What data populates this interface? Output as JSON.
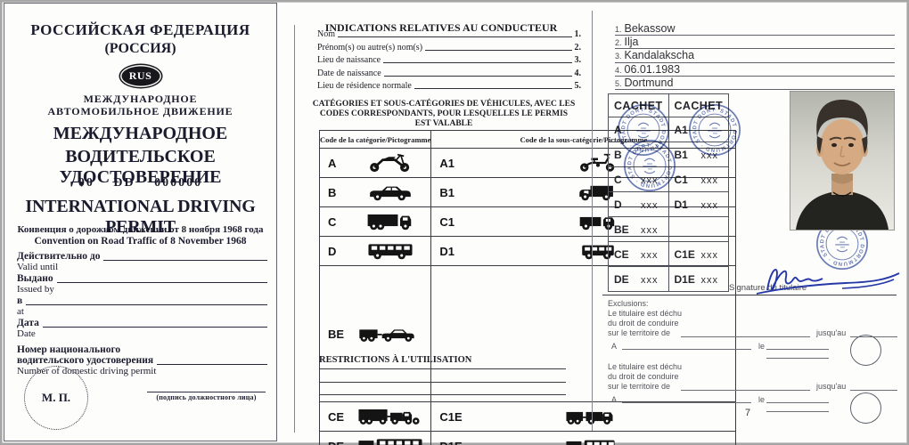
{
  "colors": {
    "stamp_blue": "#4d63a8",
    "ink_blue": "#2638a8",
    "paper": "#fdfdfc",
    "text_dark": "#1b1b2e"
  },
  "left": {
    "country_title": "РОССИЙСКАЯ ФЕДЕРАЦИЯ",
    "country_sub": "(РОССИЯ)",
    "badge": "RUS",
    "intl1": "МЕЖДУНАРОДНОЕ",
    "intl2": "АВТОМОБИЛЬНОЕ ДВИЖЕНИЕ",
    "big1": "МЕЖДУНАРОДНОЕ",
    "big2": "ВОДИТЕЛЬСКОЕ УДОСТОВЕРЕНИЕ",
    "serial": "00 DD 000000",
    "title_en": "INTERNATIONAL DRIVING PERMIT",
    "conv_ru": "Конвенция о дорожном движении от 8 ноября 1968 года",
    "conv_en": "Convention on Road Traffic of 8 November 1968",
    "fields": [
      {
        "ru": "Действительно до",
        "en": "Valid until"
      },
      {
        "ru": "Выдано",
        "en": "Issued by"
      },
      {
        "ru": "в",
        "en": "at"
      },
      {
        "ru": "Дата",
        "en": "Date"
      }
    ],
    "field5": {
      "ru1": "Номер национального",
      "ru2": "водительского удостоверения",
      "en": "Number of domestic driving permit"
    },
    "seal": "М. П.",
    "sign_caption": "(подпись должностного лица)"
  },
  "middle": {
    "heading": "INDICATIONS RELATIVES AU CONDUCTEUR",
    "fields": [
      {
        "label": "Nom",
        "num": "1."
      },
      {
        "label": "Prénom(s) ou autre(s) nom(s)",
        "num": "2."
      },
      {
        "label": "Lieu de naissance",
        "num": "3."
      },
      {
        "label": "Date de naissance",
        "num": "4."
      },
      {
        "label": "Lieu de résidence normale",
        "num": "5."
      }
    ],
    "cat_heading": "CATÉGORIES ET SOUS-CATÉGORIES DE VÉHICULES, AVEC LES CODES CORRESPONDANTS, POUR LESQUELLES LE PERMIS EST VALABLE",
    "table": {
      "h1": "Code de la catégorie/Pictogramme",
      "h2": "Code de la sous-catégorie/Pictogramme",
      "rows": [
        {
          "code1": "A",
          "icon1": "motorcycle",
          "code2": "A1",
          "icon2": "moped"
        },
        {
          "code1": "B",
          "icon1": "car",
          "code2": "B1",
          "icon2": "van"
        },
        {
          "code1": "C",
          "icon1": "truck",
          "code2": "C1",
          "icon2": "small-truck"
        },
        {
          "code1": "D",
          "icon1": "bus",
          "code2": "D1",
          "icon2": "minibus"
        },
        {
          "code1": "BE",
          "icon1": "car-trailer",
          "code2": "",
          "icon2": ""
        },
        {
          "code1": "CE",
          "icon1": "truck-trailer",
          "code2": "C1E",
          "icon2": "small-truck-trailer"
        },
        {
          "code1": "DE",
          "icon1": "bus-trailer",
          "code2": "D1E",
          "icon2": "minibus-trailer"
        }
      ]
    },
    "restrictions": "RESTRICTIONS À L'UTILISATION"
  },
  "right": {
    "fields": [
      {
        "num": "1.",
        "value": "Bekassow"
      },
      {
        "num": "2.",
        "value": "Ilja"
      },
      {
        "num": "3.",
        "value": "Kandalakscha"
      },
      {
        "num": "4.",
        "value": "06.01.1983"
      },
      {
        "num": "5.",
        "value": "Dortmund"
      }
    ],
    "cachet": {
      "h1": "CACHET",
      "h2": "CACHET",
      "rows": [
        {
          "code1": "A",
          "mark1": "",
          "code2": "A1",
          "mark2": ""
        },
        {
          "code1": "B",
          "mark1": "",
          "code2": "B1",
          "mark2": "xxx"
        },
        {
          "code1": "C",
          "mark1": "xxx",
          "code2": "C1",
          "mark2": "xxx"
        },
        {
          "code1": "D",
          "mark1": "xxx",
          "code2": "D1",
          "mark2": "xxx"
        },
        {
          "code1": "BE",
          "mark1": "xxx",
          "code2": "",
          "mark2": ""
        },
        {
          "code1": "CE",
          "mark1": "xxx",
          "code2": "C1E",
          "mark2": "xxx"
        },
        {
          "code1": "DE",
          "mark1": "xxx",
          "code2": "D1E",
          "mark2": "xxx"
        }
      ]
    },
    "stamp_ring": "· STADT DORTMUND · STADT DORTMUND ·",
    "signature_label": "Signature du titulaire",
    "excl": {
      "heading": "Exclusions:",
      "l1": "Le titulaire est déchu",
      "l2": "du droit de conduire",
      "l3": "sur le territoire de",
      "jusquau": "jusqu'au",
      "a": "A",
      "le": "le"
    },
    "page_number": "7"
  }
}
